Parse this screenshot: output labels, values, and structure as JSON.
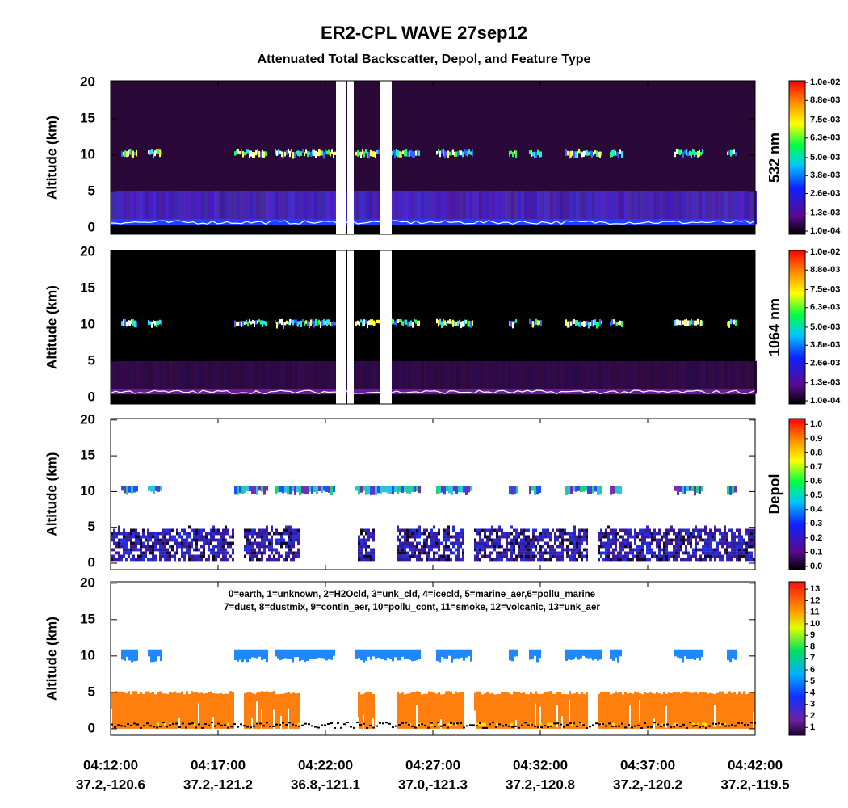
{
  "chart_data": {
    "type": "curtain",
    "title": "ER2-CPL WAVE 27sep12",
    "subtitle": "Attenuated Total Backscatter, Depol, and Feature Type",
    "xticks": [
      {
        "label": "04:12:00",
        "location": "37.2,-120.6"
      },
      {
        "label": "04:17:00",
        "location": "37.2,-121.2"
      },
      {
        "label": "04:22:00",
        "location": "36.8,-121.1"
      },
      {
        "label": "04:27:00",
        "location": "37.0,-121.3"
      },
      {
        "label": "04:32:00",
        "location": "37.2,-120.8"
      },
      {
        "label": "04:37:00",
        "location": "37.2,-120.2"
      },
      {
        "label": "04:42:00",
        "location": "37.2,-119.5"
      }
    ],
    "panels": [
      {
        "kind": "backscatter",
        "ylabel": "Altitude (km)",
        "ylim": [
          -0.9,
          20.2
        ],
        "yticks": [
          0,
          5,
          10,
          15,
          20
        ],
        "colorbar": {
          "label": "532 nm",
          "lim": [
            0.0001,
            0.01
          ],
          "ticks": [
            {
              "value": 0.0001,
              "label": "1.0e-04"
            },
            {
              "value": 0.0013,
              "label": "1.3e-03"
            },
            {
              "value": 0.0026,
              "label": "2.6e-03"
            },
            {
              "value": 0.0038,
              "label": "3.8e-03"
            },
            {
              "value": 0.005,
              "label": "5.0e-03"
            },
            {
              "value": 0.0063,
              "label": "6.3e-03"
            },
            {
              "value": 0.0075,
              "label": "7.5e-03"
            },
            {
              "value": 0.0088,
              "label": "8.8e-03"
            },
            {
              "value": 0.01,
              "label": "1.0e-02"
            }
          ]
        }
      },
      {
        "kind": "backscatter-ir",
        "ylabel": "Altitude (km)",
        "ylim": [
          -0.9,
          20.2
        ],
        "yticks": [
          0,
          5,
          10,
          15,
          20
        ],
        "colorbar": {
          "label": "1064 nm",
          "lim": [
            0.0001,
            0.01
          ],
          "ticks": [
            {
              "value": 0.0001,
              "label": "1.0e-04"
            },
            {
              "value": 0.0013,
              "label": "1.3e-03"
            },
            {
              "value": 0.0026,
              "label": "2.6e-03"
            },
            {
              "value": 0.0038,
              "label": "3.8e-03"
            },
            {
              "value": 0.005,
              "label": "5.0e-03"
            },
            {
              "value": 0.0063,
              "label": "6.3e-03"
            },
            {
              "value": 0.0075,
              "label": "7.5e-03"
            },
            {
              "value": 0.0088,
              "label": "8.8e-03"
            },
            {
              "value": 0.01,
              "label": "1.0e-02"
            }
          ]
        }
      },
      {
        "kind": "depol",
        "ylabel": "Altitude (km)",
        "ylim": [
          -0.9,
          20.2
        ],
        "yticks": [
          0,
          5,
          10,
          15,
          20
        ],
        "colorbar": {
          "label": "Depol",
          "lim": [
            0,
            1.03
          ],
          "ticks": [
            {
              "value": 0,
              "label": "0.0"
            },
            0.1,
            0.2,
            0.3,
            0.4,
            0.5,
            0.6,
            0.7,
            0.8,
            0.9,
            {
              "value": 1,
              "label": "1.0"
            }
          ]
        }
      },
      {
        "kind": "feature",
        "ylabel": "Altitude (km)",
        "ylim": [
          -0.9,
          20.2
        ],
        "yticks": [
          0,
          5,
          10,
          15,
          20
        ],
        "legend_text": [
          "0=earth, 1=unknown, 2=H2Ocld, 3=unk_cld, 4=icecld, 5=marine_aer,6=pollu_marine",
          "7=dust, 8=dustmix, 9=contin_aer, 10=pollu_cont, 11=smoke, 12=volcanic, 13=unk_aer"
        ],
        "colorbar": {
          "lim": [
            0.6,
            13.5
          ],
          "ticks": [
            1,
            2,
            3,
            4,
            5,
            6,
            7,
            8,
            9,
            10,
            11,
            12,
            13
          ]
        }
      }
    ]
  }
}
